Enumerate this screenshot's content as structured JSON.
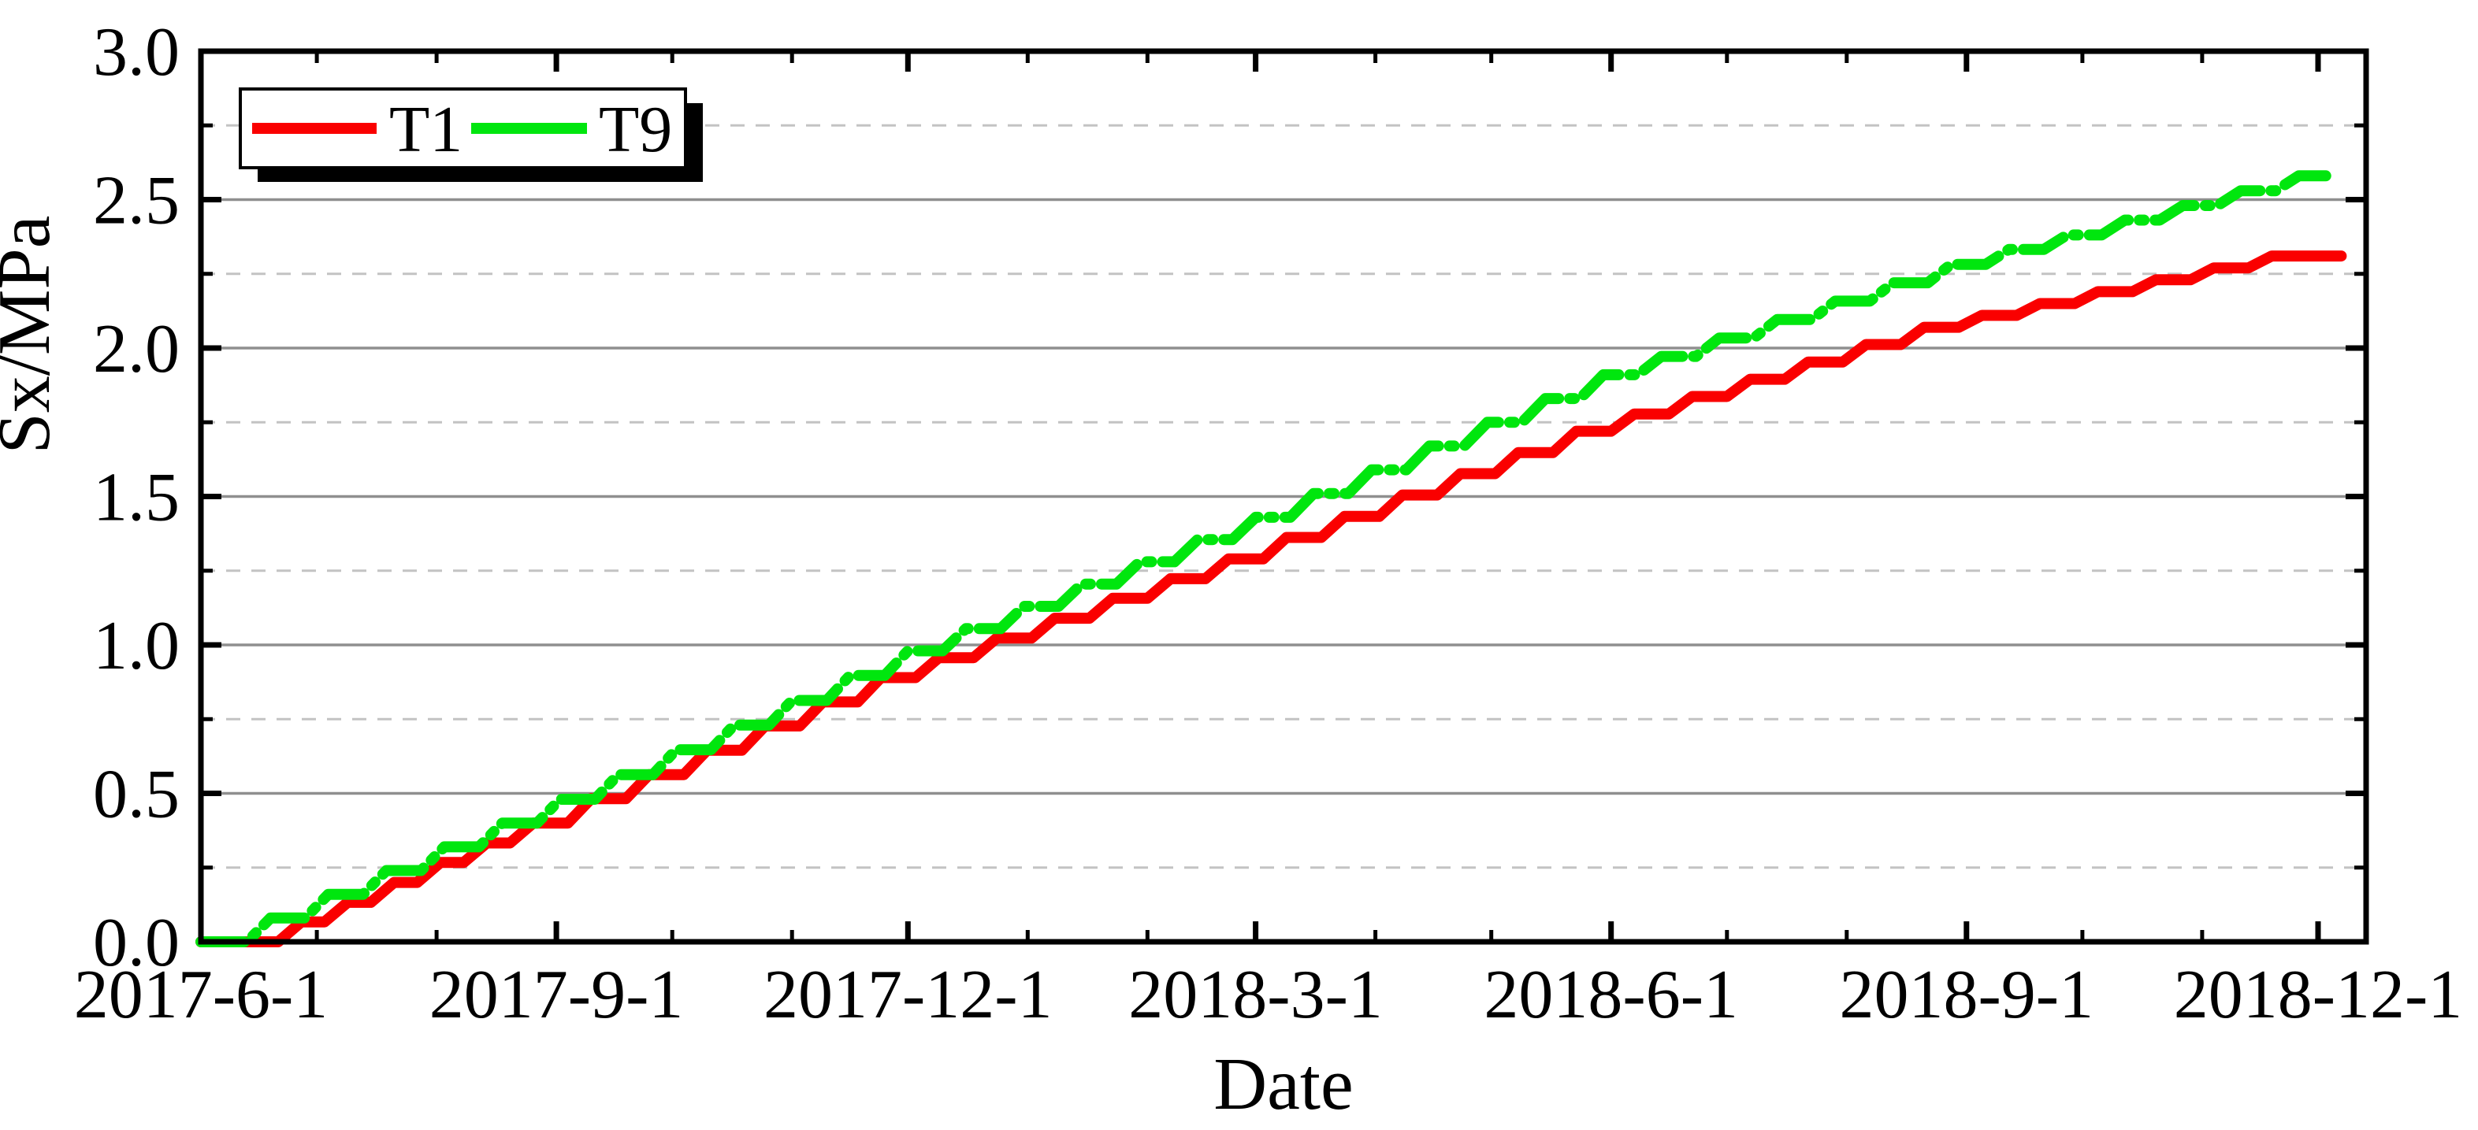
{
  "page": {
    "background": "#ffffff"
  },
  "chart_data": {
    "type": "line",
    "subtype": "step-cumulative",
    "title": "",
    "xlabel": "Date",
    "ylabel": "Sx/MPa",
    "colors": {
      "frame": "#000000",
      "grid_major": "#8f8f8f",
      "grid_minor": "#c3c3c3",
      "background": "#ffffff",
      "legend_shadow": "#000000",
      "legend_fill": "#ffffff"
    },
    "y_axis": {
      "min": 0.0,
      "max": 3.0,
      "major_step": 0.5,
      "minor_step": 0.25,
      "tick_labels": [
        "0.0",
        "0.5",
        "1.0",
        "1.5",
        "2.0",
        "2.5",
        "3.0"
      ],
      "major_values": [
        0.0,
        0.5,
        1.0,
        1.5,
        2.0,
        2.5,
        3.0
      ],
      "minor_values": [
        0.25,
        0.75,
        1.25,
        1.75,
        2.25,
        2.75
      ],
      "grid": "major-solid-minor-dashed"
    },
    "x_axis": {
      "start_label": "2017-6-1",
      "days_total": 560,
      "major_ticks": [
        {
          "label": "2017-6-1",
          "day": 0
        },
        {
          "label": "2017-9-1",
          "day": 92
        },
        {
          "label": "2017-12-1",
          "day": 183
        },
        {
          "label": "2018-3-1",
          "day": 273
        },
        {
          "label": "2018-6-1",
          "day": 365
        },
        {
          "label": "2018-9-1",
          "day": 457
        },
        {
          "label": "2018-12-1",
          "day": 548
        }
      ],
      "minor_tick_days": [
        30,
        61,
        122,
        153,
        214,
        245,
        304,
        334,
        395,
        426,
        487,
        518
      ],
      "grid": "off"
    },
    "legend": {
      "position": "top-left",
      "entries": [
        "T1",
        "T9"
      ]
    },
    "series": [
      {
        "name": "T1",
        "color": "#fa0000",
        "style": "solid",
        "line_width": 14,
        "points": [
          [
            0,
            0
          ],
          [
            26,
            0.067
          ],
          [
            38,
            0.133
          ],
          [
            50,
            0.2
          ],
          [
            62,
            0.267
          ],
          [
            74,
            0.333
          ],
          [
            86,
            0.4
          ],
          [
            101,
            0.482
          ],
          [
            116,
            0.563
          ],
          [
            131,
            0.645
          ],
          [
            146,
            0.727
          ],
          [
            161,
            0.808
          ],
          [
            176,
            0.89
          ],
          [
            191,
            0.957
          ],
          [
            206,
            1.023
          ],
          [
            221,
            1.09
          ],
          [
            236,
            1.157
          ],
          [
            251,
            1.223
          ],
          [
            266,
            1.29
          ],
          [
            281,
            1.362
          ],
          [
            296,
            1.433
          ],
          [
            311,
            1.505
          ],
          [
            326,
            1.577
          ],
          [
            341,
            1.648
          ],
          [
            356,
            1.72
          ],
          [
            371,
            1.778
          ],
          [
            386,
            1.837
          ],
          [
            401,
            1.895
          ],
          [
            416,
            1.953
          ],
          [
            431,
            2.012
          ],
          [
            446,
            2.07
          ],
          [
            461,
            2.11
          ],
          [
            476,
            2.15
          ],
          [
            491,
            2.19
          ],
          [
            506,
            2.23
          ],
          [
            521,
            2.27
          ],
          [
            536,
            2.31
          ],
          [
            554,
            2.31
          ]
        ]
      },
      {
        "name": "T9",
        "color": "#00e60e",
        "style": "dash-dot",
        "line_width": 14,
        "points": [
          [
            0,
            0
          ],
          [
            18,
            0.08
          ],
          [
            33,
            0.16
          ],
          [
            48,
            0.24
          ],
          [
            63,
            0.32
          ],
          [
            78,
            0.4
          ],
          [
            93,
            0.48
          ],
          [
            108,
            0.563
          ],
          [
            123,
            0.647
          ],
          [
            138,
            0.73
          ],
          [
            153,
            0.813
          ],
          [
            168,
            0.897
          ],
          [
            183,
            0.98
          ],
          [
            198,
            1.055
          ],
          [
            213,
            1.13
          ],
          [
            228,
            1.205
          ],
          [
            243,
            1.28
          ],
          [
            258,
            1.355
          ],
          [
            273,
            1.43
          ],
          [
            288,
            1.51
          ],
          [
            303,
            1.59
          ],
          [
            318,
            1.67
          ],
          [
            333,
            1.75
          ],
          [
            348,
            1.83
          ],
          [
            363,
            1.91
          ],
          [
            378,
            1.972
          ],
          [
            393,
            2.034
          ],
          [
            408,
            2.096
          ],
          [
            423,
            2.158
          ],
          [
            438,
            2.22
          ],
          [
            453,
            2.282
          ],
          [
            468,
            2.332
          ],
          [
            483,
            2.381
          ],
          [
            498,
            2.431
          ],
          [
            513,
            2.48
          ],
          [
            528,
            2.53
          ],
          [
            543,
            2.58
          ],
          [
            552,
            2.58
          ]
        ]
      }
    ]
  }
}
